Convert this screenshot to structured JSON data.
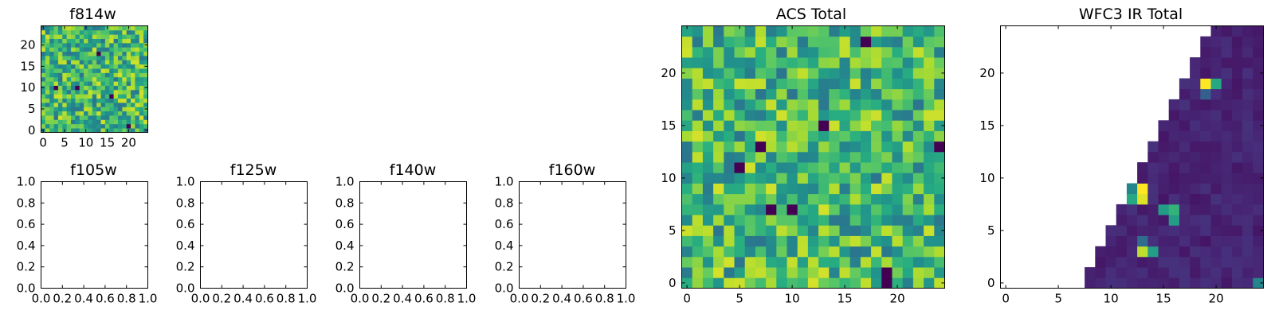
{
  "colormap": [
    "#440154",
    "#472d7b",
    "#3b528b",
    "#2c728e",
    "#21918c",
    "#28ae80",
    "#5ec962",
    "#addc30",
    "#fde725"
  ],
  "chart_data": [
    {
      "id": "f814w",
      "type": "heatmap",
      "title": "f814w",
      "nx": 25,
      "ny": 25,
      "xlim": [
        -0.5,
        24.5
      ],
      "ylim": [
        -0.5,
        24.5
      ],
      "xticks": [
        0,
        5,
        10,
        15,
        20
      ],
      "yticks": [
        0,
        5,
        10,
        15,
        20
      ],
      "value_range": [
        0,
        1
      ],
      "typical_value": 0.66,
      "dark_pixels": [
        [
          20,
          1
        ],
        [
          8,
          10
        ],
        [
          3,
          10
        ],
        [
          16,
          8
        ],
        [
          13,
          18
        ]
      ]
    },
    {
      "id": "f105w",
      "type": "empty",
      "title": "f105w",
      "xlim": [
        0,
        1
      ],
      "ylim": [
        0,
        1
      ],
      "xticks": [
        "0.0",
        "0.2",
        "0.4",
        "0.6",
        "0.8",
        "1.0"
      ],
      "yticks": [
        "0.0",
        "0.2",
        "0.4",
        "0.6",
        "0.8",
        "1.0"
      ]
    },
    {
      "id": "f125w",
      "type": "empty",
      "title": "f125w",
      "xlim": [
        0,
        1
      ],
      "ylim": [
        0,
        1
      ],
      "xticks": [
        "0.0",
        "0.2",
        "0.4",
        "0.6",
        "0.8",
        "1.0"
      ],
      "yticks": [
        "0.0",
        "0.2",
        "0.4",
        "0.6",
        "0.8",
        "1.0"
      ]
    },
    {
      "id": "f140w",
      "type": "empty",
      "title": "f140w",
      "xlim": [
        0,
        1
      ],
      "ylim": [
        0,
        1
      ],
      "xticks": [
        "0.0",
        "0.2",
        "0.4",
        "0.6",
        "0.8",
        "1.0"
      ],
      "yticks": [
        "0.0",
        "0.2",
        "0.4",
        "0.6",
        "0.8",
        "1.0"
      ]
    },
    {
      "id": "f160w",
      "type": "empty",
      "title": "f160w",
      "xlim": [
        0,
        1
      ],
      "ylim": [
        0,
        1
      ],
      "xticks": [
        "0.0",
        "0.2",
        "0.4",
        "0.6",
        "0.8",
        "1.0"
      ],
      "yticks": [
        "0.0",
        "0.2",
        "0.4",
        "0.6",
        "0.8",
        "1.0"
      ]
    },
    {
      "id": "acs_total",
      "type": "heatmap",
      "title": "ACS Total",
      "nx": 25,
      "ny": 25,
      "xlim": [
        -0.5,
        24.5
      ],
      "ylim": [
        -0.5,
        24.5
      ],
      "xticks": [
        0,
        5,
        10,
        15,
        20
      ],
      "yticks": [
        0,
        5,
        10,
        15,
        20
      ],
      "value_range": [
        0,
        1
      ],
      "typical_value": 0.66,
      "dark_pixels": [
        [
          17,
          23
        ],
        [
          13,
          15
        ],
        [
          7,
          13
        ],
        [
          5,
          11
        ],
        [
          8,
          7
        ],
        [
          10,
          7
        ],
        [
          19,
          1
        ],
        [
          19,
          0
        ],
        [
          24,
          13
        ]
      ]
    },
    {
      "id": "wfc3_ir_total",
      "type": "heatmap",
      "title": "WFC3 IR Total",
      "nx": 25,
      "ny": 25,
      "xlim": [
        -0.5,
        24.5
      ],
      "ylim": [
        -0.5,
        24.5
      ],
      "xticks": [
        0,
        5,
        10,
        15,
        20
      ],
      "yticks": [
        0,
        5,
        10,
        15,
        20
      ],
      "value_range": [
        0,
        1
      ],
      "typical_value": 0.06,
      "coverage": "filled above diagonal edge from (8,0) to (20,24); blank elsewhere",
      "bright_pixels": [
        [
          19,
          19,
          1.0
        ],
        [
          20,
          19,
          0.6
        ],
        [
          19,
          18,
          0.3
        ],
        [
          13,
          9,
          1.0
        ],
        [
          12,
          9,
          0.45
        ],
        [
          13,
          8,
          0.95
        ],
        [
          12,
          8,
          0.6
        ],
        [
          15,
          7,
          0.55
        ],
        [
          16,
          7,
          0.65
        ],
        [
          16,
          6,
          0.55
        ],
        [
          13,
          3,
          0.9
        ],
        [
          14,
          3,
          0.55
        ],
        [
          13,
          4,
          0.35
        ],
        [
          24,
          0,
          0.45
        ]
      ]
    }
  ]
}
